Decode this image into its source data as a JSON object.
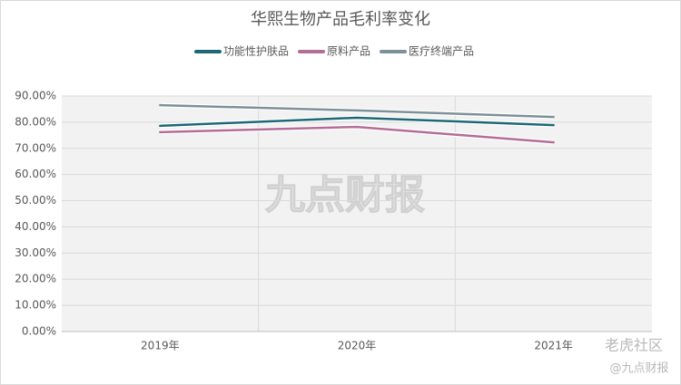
{
  "chart_data": {
    "type": "line",
    "title": "华熙生物产品毛利率变化",
    "categories": [
      "2019年",
      "2020年",
      "2021年"
    ],
    "series": [
      {
        "name": "功能性护肤品",
        "color": "#1d6876",
        "values": [
          78.6,
          81.7,
          78.9
        ]
      },
      {
        "name": "原料产品",
        "color": "#b36e96",
        "values": [
          76.2,
          78.2,
          72.3
        ]
      },
      {
        "name": "医疗终端产品",
        "color": "#7d9198",
        "values": [
          86.5,
          84.5,
          82.0
        ]
      }
    ],
    "ylim": [
      0,
      90
    ],
    "yticks": [
      {
        "value": 0,
        "label": "0.00%"
      },
      {
        "value": 10,
        "label": "10.00%"
      },
      {
        "value": 20,
        "label": "20.00%"
      },
      {
        "value": 30,
        "label": "30.00%"
      },
      {
        "value": 40,
        "label": "40.00%"
      },
      {
        "value": 50,
        "label": "50.00%"
      },
      {
        "value": 60,
        "label": "60.00%"
      },
      {
        "value": 70,
        "label": "70.00%"
      },
      {
        "value": 80,
        "label": "80.00%"
      },
      {
        "value": 90,
        "label": "90.00%"
      }
    ],
    "grid": true,
    "legend": "top"
  },
  "watermarks": [
    "九点财报",
    "老虎社区",
    "@九点财报"
  ]
}
